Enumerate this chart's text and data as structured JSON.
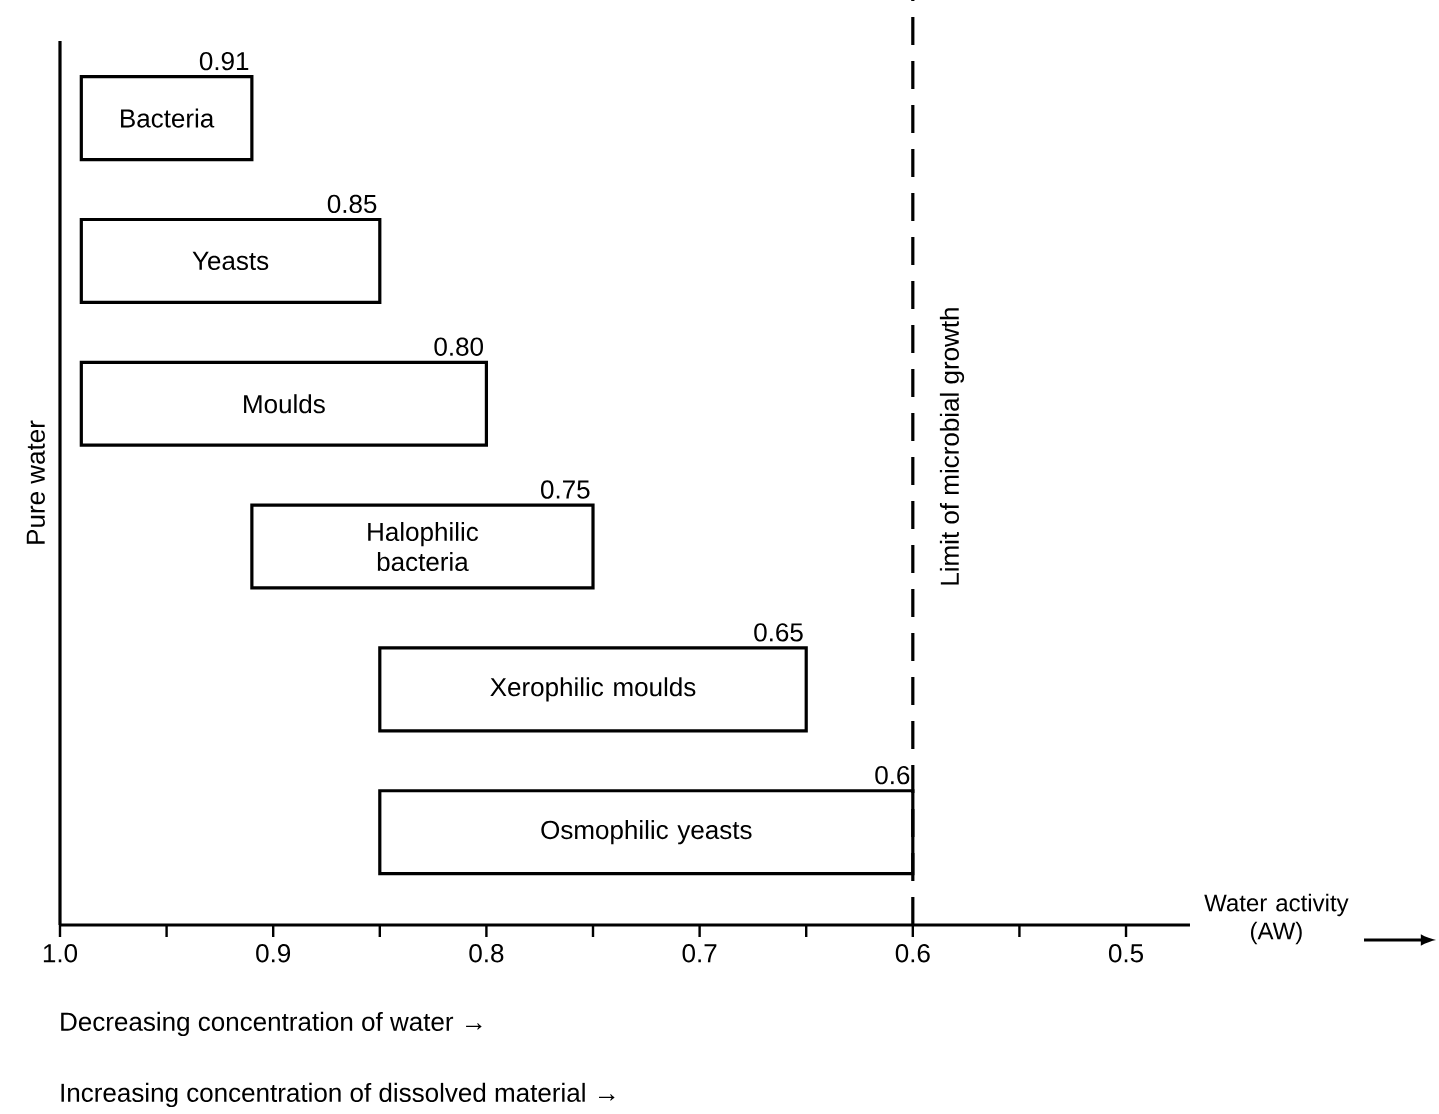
{
  "chart_data": {
    "type": "bar",
    "orientation": "horizontal",
    "categories": [
      "Bacteria",
      "Yeasts",
      "Moulds",
      "Halophilic bacteria",
      "Xerophilic moulds",
      "Osmophilic yeasts"
    ],
    "base": [
      0.99,
      0.99,
      0.99,
      0.91,
      0.85,
      0.85
    ],
    "values": [
      -0.08,
      -0.14,
      -0.19,
      -0.16,
      -0.2,
      -0.25
    ],
    "value_labels": [
      "0.91",
      "0.85",
      "0.80",
      "0.75",
      "0.65",
      "0.6"
    ],
    "color": "#ffffff",
    "xlim": [
      1.0,
      0.47
    ],
    "xticks": [
      {
        "value": 1.0,
        "label": "1.0"
      },
      {
        "value": 0.95,
        "label": null
      },
      0.9,
      {
        "value": 0.85,
        "label": null
      },
      0.8,
      {
        "value": 0.75,
        "label": null
      },
      0.7,
      {
        "value": 0.65,
        "label": null
      },
      0.6,
      {
        "value": 0.55,
        "label": null
      },
      0.5
    ],
    "xlabel": "Water activity (AW)",
    "ylabel": "Pure water",
    "ref_lines": [
      {
        "axis": "x",
        "value": 0.6,
        "label": "Limit of microbial growth",
        "color": "#000000",
        "line_style": "dashed"
      }
    ],
    "annotations": [
      "Decreasing concentration of water →",
      "Increasing concentration of dissolved material →"
    ],
    "tick_labels": "x",
    "grid": false
  }
}
